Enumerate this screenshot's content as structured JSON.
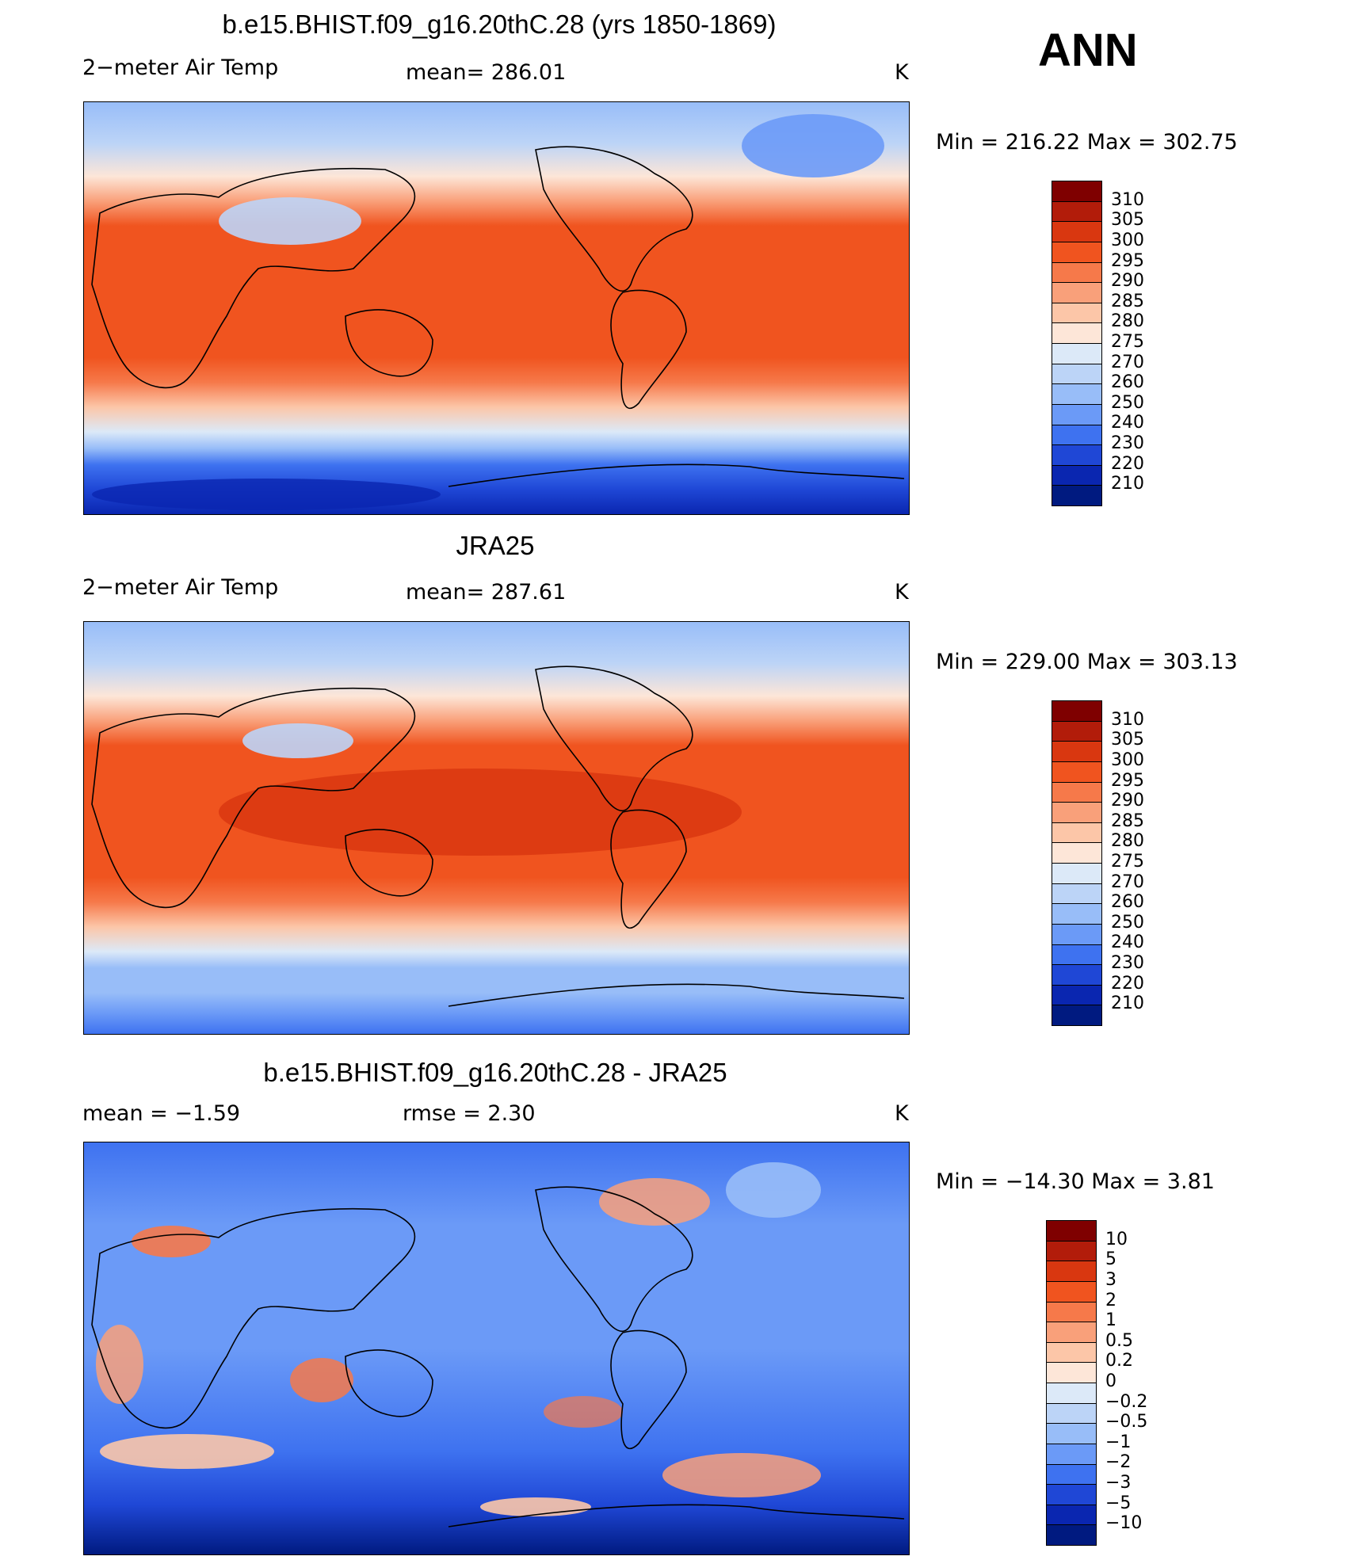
{
  "season": "ANN",
  "unit": "K",
  "panels": [
    {
      "title": "b.e15.BHIST.f09_g16.20thC.28 (yrs 1850-1869)",
      "left": "2−meter Air Temp",
      "center": "mean=  286.01",
      "unit": "K",
      "minmax": "Min  =  216.22  Max  =  302.75"
    },
    {
      "title": "JRA25",
      "left": "2−meter Air Temp",
      "center": "mean=  287.61",
      "unit": "K",
      "minmax": "Min  =  229.00  Max  =  303.13"
    },
    {
      "title": "b.e15.BHIST.f09_g16.20thC.28 - JRA25",
      "left": "mean  =     −1.59",
      "center": "rmse  =     2.30",
      "unit": "K",
      "minmax": "Min  =  −14.30  Max  =     3.81"
    }
  ],
  "legend_abs": {
    "labels": [
      "310",
      "305",
      "300",
      "295",
      "290",
      "285",
      "280",
      "275",
      "270",
      "260",
      "250",
      "240",
      "230",
      "220",
      "210"
    ],
    "colors": [
      "#7f0000",
      "#b21c0a",
      "#d93710",
      "#f0541f",
      "#f6794a",
      "#f9a07a",
      "#fcc6a8",
      "#fde6d8",
      "#dce9f8",
      "#bcd4f7",
      "#98bdf8",
      "#6b9af7",
      "#3e72f0",
      "#1f47d6",
      "#0a26b0",
      "#001a80"
    ]
  },
  "legend_diff": {
    "labels": [
      "10",
      "5",
      "3",
      "2",
      "1",
      "0.5",
      "0.2",
      "0",
      "−0.2",
      "−0.5",
      "−1",
      "−2",
      "−3",
      "−5",
      "−10"
    ],
    "colors": [
      "#7f0000",
      "#b21c0a",
      "#d93710",
      "#f0541f",
      "#f6794a",
      "#f9a07a",
      "#fcc6a8",
      "#fde6d8",
      "#dce9f8",
      "#bcd4f7",
      "#98bdf8",
      "#6b9af7",
      "#3e72f0",
      "#1f47d6",
      "#0a26b0",
      "#001a80"
    ]
  }
}
